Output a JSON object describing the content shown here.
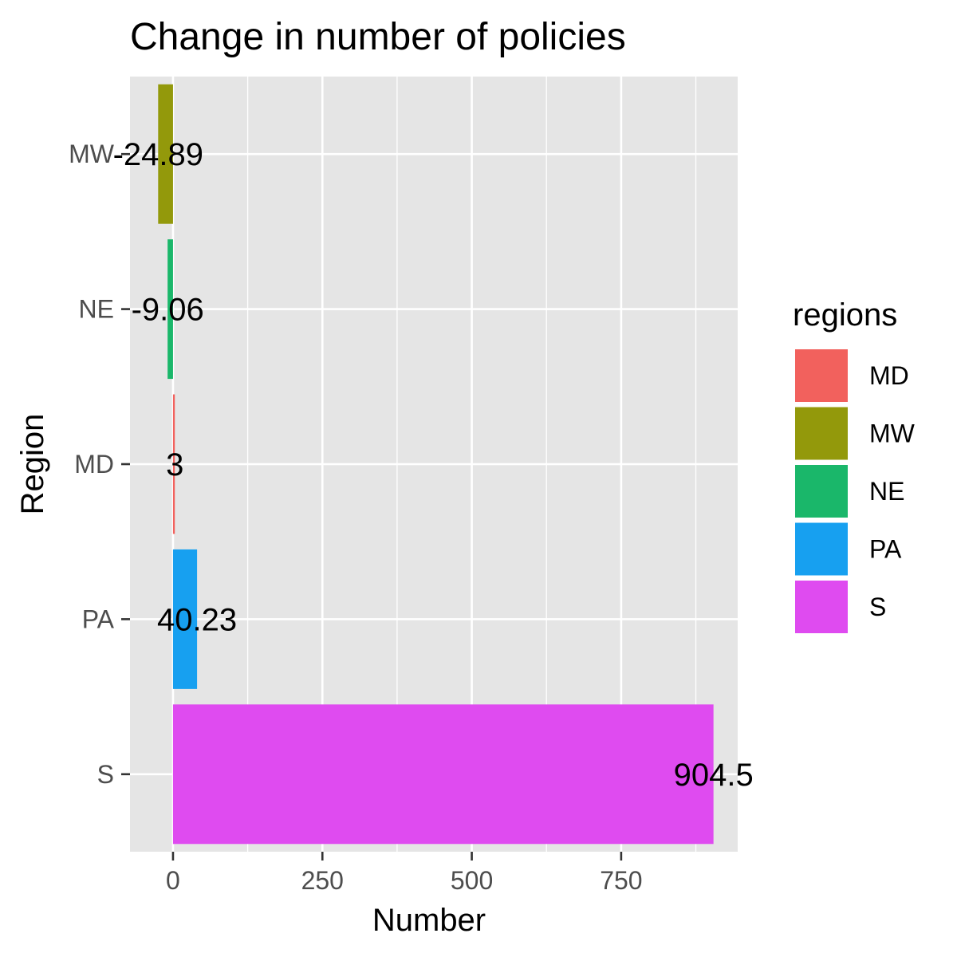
{
  "chart_data": {
    "type": "bar",
    "orientation": "horizontal",
    "title": "Change in number of policies",
    "xlabel": "Number",
    "ylabel": "Region",
    "categories": [
      "MW",
      "NE",
      "MD",
      "PA",
      "S"
    ],
    "values": [
      -24.89,
      -9.06,
      3,
      40.23,
      904.5
    ],
    "data_labels": [
      "-24.89",
      "-9.06",
      "3",
      "40.23",
      "904.5"
    ],
    "colors": [
      "#93990B",
      "#1AB76A",
      "#F2615D",
      "#17A0F0",
      "#DF4BF0"
    ],
    "x_ticks": [
      0,
      250,
      500,
      750
    ],
    "x_tick_labels": [
      "0",
      "250",
      "500",
      "750"
    ],
    "xlim": [
      -72,
      945
    ],
    "grid": true,
    "background": "#E5E5E5",
    "legend": {
      "title": "regions",
      "placement": "right",
      "entries": [
        {
          "label": "MD",
          "color": "#F2615D"
        },
        {
          "label": "MW",
          "color": "#93990B"
        },
        {
          "label": "NE",
          "color": "#1AB76A"
        },
        {
          "label": "PA",
          "color": "#17A0F0"
        },
        {
          "label": "S",
          "color": "#DF4BF0"
        }
      ]
    }
  }
}
